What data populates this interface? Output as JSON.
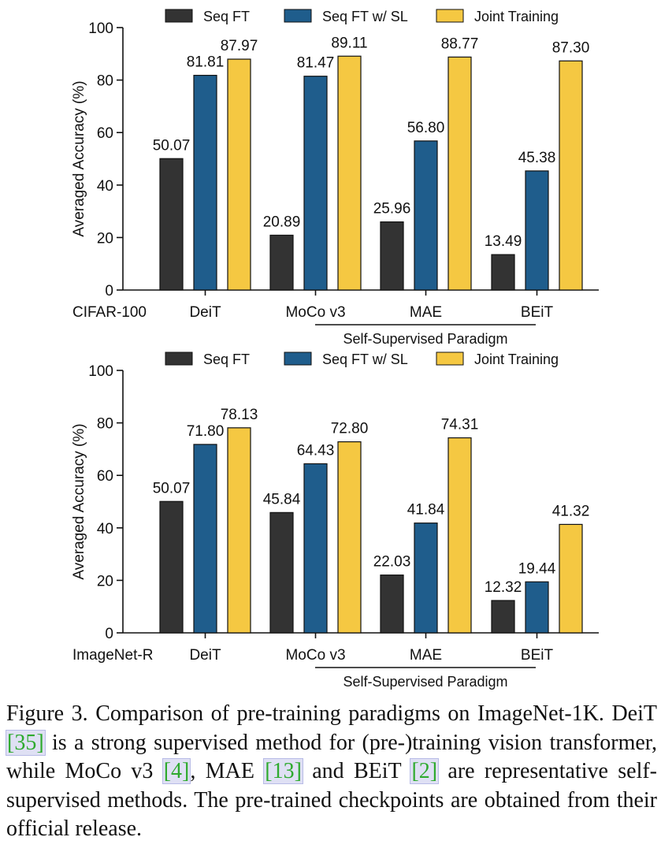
{
  "colors": {
    "seq_ft": "#333333",
    "seq_ft_sl": "#1f5d8c",
    "joint": "#f5c842",
    "axis": "#111111",
    "citation_text": "#2eaa2e",
    "citation_box": "#dfe0f4"
  },
  "legend": [
    "Seq FT",
    "Seq FT w/ SL",
    "Joint Training"
  ],
  "chart_data": [
    {
      "type": "bar",
      "dataset_label": "CIFAR-100",
      "categories": [
        "DeiT",
        "MoCo v3",
        "MAE",
        "BEiT"
      ],
      "ylabel": "Averaged Accuracy (%)",
      "ylim": [
        0,
        100
      ],
      "yticks": [
        0,
        20,
        40,
        60,
        80,
        100
      ],
      "legend_position": "top",
      "bracket_label": "Self-Supervised Paradigm",
      "series": [
        {
          "name": "Seq FT",
          "values": [
            50.07,
            20.89,
            25.96,
            13.49
          ],
          "labels": [
            "50.07",
            "20.89",
            "25.96",
            "13.49"
          ]
        },
        {
          "name": "Seq FT w/ SL",
          "values": [
            81.81,
            81.47,
            56.8,
            45.38
          ],
          "labels": [
            "81.81",
            "81.47",
            "56.80",
            "45.38"
          ]
        },
        {
          "name": "Joint Training",
          "values": [
            87.97,
            89.11,
            88.77,
            87.3
          ],
          "labels": [
            "87.97",
            "89.11",
            "88.77",
            "87.30"
          ]
        }
      ]
    },
    {
      "type": "bar",
      "dataset_label": "ImageNet-R",
      "categories": [
        "DeiT",
        "MoCo v3",
        "MAE",
        "BEiT"
      ],
      "ylabel": "Averaged Accuracy (%)",
      "ylim": [
        0,
        100
      ],
      "yticks": [
        0,
        20,
        40,
        60,
        80,
        100
      ],
      "legend_position": "top",
      "bracket_label": "Self-Supervised Paradigm",
      "series": [
        {
          "name": "Seq FT",
          "values": [
            50.07,
            45.84,
            22.03,
            12.32
          ],
          "labels": [
            "50.07",
            "45.84",
            "22.03",
            "12.32"
          ]
        },
        {
          "name": "Seq FT w/ SL",
          "values": [
            71.8,
            64.43,
            41.84,
            19.44
          ],
          "labels": [
            "71.80",
            "64.43",
            "41.84",
            "19.44"
          ]
        },
        {
          "name": "Joint Training",
          "values": [
            78.13,
            72.8,
            74.31,
            41.32
          ],
          "labels": [
            "78.13",
            "72.80",
            "74.31",
            "41.32"
          ]
        }
      ]
    }
  ],
  "caption": {
    "p1": "Figure 3. Comparison of pre-training paradigms on ImageNet-1K. DeiT ",
    "c1": "[35]",
    "p2": " is a strong supervised method for (pre-)training vision transformer, while MoCo v3 ",
    "c2": "[4]",
    "p3": ", MAE ",
    "c3": "[13]",
    "p4": " and BEiT ",
    "c4": "[2]",
    "p5": " are representative self-supervised methods. The pre-trained checkpoints are obtained from their official release."
  }
}
